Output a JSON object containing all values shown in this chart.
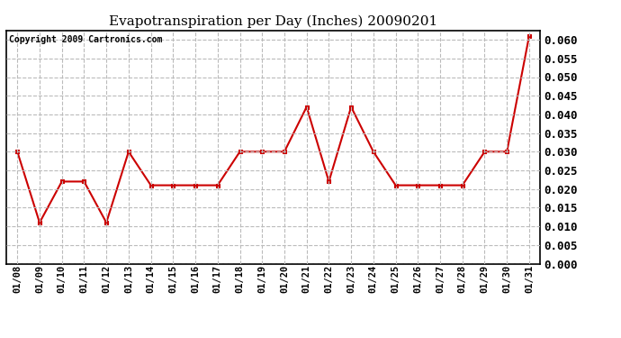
{
  "title": "Evapotranspiration per Day (Inches) 20090201",
  "copyright_text": "Copyright 2009 Cartronics.com",
  "dates": [
    "01/08",
    "01/09",
    "01/10",
    "01/11",
    "01/12",
    "01/13",
    "01/14",
    "01/15",
    "01/16",
    "01/17",
    "01/18",
    "01/19",
    "01/20",
    "01/21",
    "01/22",
    "01/23",
    "01/24",
    "01/25",
    "01/26",
    "01/27",
    "01/28",
    "01/29",
    "01/30",
    "01/31"
  ],
  "values": [
    0.03,
    0.011,
    0.022,
    0.022,
    0.011,
    0.03,
    0.021,
    0.021,
    0.021,
    0.021,
    0.03,
    0.03,
    0.03,
    0.042,
    0.022,
    0.042,
    0.03,
    0.021,
    0.021,
    0.021,
    0.021,
    0.03,
    0.03,
    0.061
  ],
  "line_color": "#cc0000",
  "marker": "s",
  "marker_size": 2.5,
  "line_width": 1.5,
  "ylim": [
    0.0,
    0.0625
  ],
  "ytick_max": 0.06,
  "ytick_interval": 0.005,
  "background_color": "#ffffff",
  "grid_color": "#bbbbbb",
  "grid_style": "--",
  "title_fontsize": 11,
  "copyright_fontsize": 7,
  "ytick_fontsize": 9,
  "xtick_fontsize": 7.5
}
